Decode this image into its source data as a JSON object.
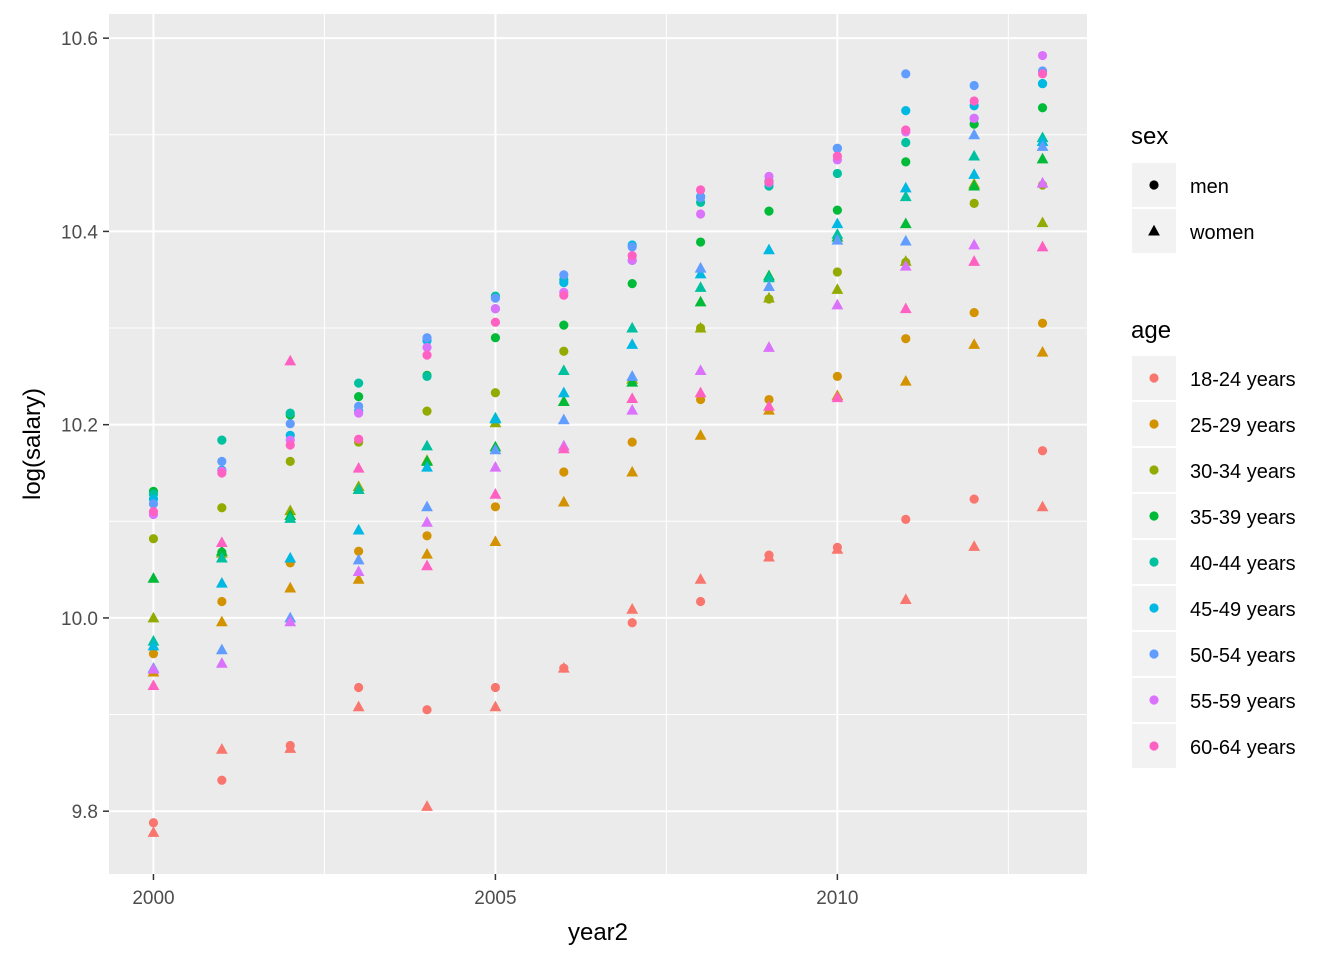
{
  "chart_data": {
    "type": "scatter",
    "xlabel": "year2",
    "ylabel": "log(salary)",
    "xlim": [
      1999.35,
      2013.65
    ],
    "ylim": [
      9.735,
      10.625
    ],
    "x_ticks": [
      2000,
      2005,
      2010
    ],
    "x_tick_labels": [
      "2000",
      "2005",
      "2010"
    ],
    "y_ticks": [
      9.8,
      10.0,
      10.2,
      10.4,
      10.6
    ],
    "y_tick_labels": [
      "9.8",
      "10.0",
      "10.2",
      "10.4",
      "10.6"
    ],
    "grid": true,
    "legend_position": "right",
    "legends": {
      "sex": {
        "title": "sex",
        "entries": [
          {
            "label": "men",
            "shape": "circle"
          },
          {
            "label": "women",
            "shape": "triangle"
          }
        ]
      },
      "age": {
        "title": "age",
        "entries": [
          {
            "label": "18-24 years",
            "color": "#F8766D"
          },
          {
            "label": "25-29 years",
            "color": "#D39200"
          },
          {
            "label": "30-34 years",
            "color": "#93AA00"
          },
          {
            "label": "35-39 years",
            "color": "#00BA38"
          },
          {
            "label": "40-44 years",
            "color": "#00C19F"
          },
          {
            "label": "45-49 years",
            "color": "#00B9E3"
          },
          {
            "label": "50-54 years",
            "color": "#619CFF"
          },
          {
            "label": "55-59 years",
            "color": "#DB72FB"
          },
          {
            "label": "60-64 years",
            "color": "#FF61C3"
          }
        ]
      }
    },
    "x": [
      2000,
      2001,
      2002,
      2003,
      2004,
      2005,
      2006,
      2007,
      2008,
      2009,
      2010,
      2011,
      2012,
      2013
    ],
    "series": [
      {
        "age": "18-24 years",
        "sex": "men",
        "values": [
          9.788,
          9.832,
          9.868,
          9.928,
          9.905,
          9.928,
          9.948,
          9.995,
          10.017,
          10.065,
          10.073,
          10.102,
          10.123,
          10.173
        ]
      },
      {
        "age": "18-24 years",
        "sex": "women",
        "values": [
          9.778,
          9.864,
          9.865,
          9.908,
          9.805,
          9.908,
          9.948,
          10.009,
          10.04,
          10.063,
          10.071,
          10.019,
          10.074,
          10.115
        ]
      },
      {
        "age": "25-29 years",
        "sex": "men",
        "values": [
          9.963,
          10.017,
          10.057,
          10.069,
          10.085,
          10.115,
          10.151,
          10.182,
          10.226,
          10.226,
          10.25,
          10.289,
          10.316,
          10.305
        ]
      },
      {
        "age": "25-29 years",
        "sex": "women",
        "values": [
          9.944,
          9.996,
          10.031,
          10.04,
          10.066,
          10.079,
          10.12,
          10.151,
          10.189,
          10.215,
          10.23,
          10.245,
          10.283,
          10.275
        ]
      },
      {
        "age": "30-34 years",
        "sex": "men",
        "values": [
          10.082,
          10.114,
          10.162,
          10.182,
          10.214,
          10.233,
          10.276,
          10.245,
          10.3,
          10.33,
          10.358,
          10.368,
          10.429,
          10.448
        ]
      },
      {
        "age": "30-34 years",
        "sex": "women",
        "values": [
          10.0,
          10.067,
          10.111,
          10.136,
          10.163,
          10.202,
          10.224,
          10.247,
          10.3,
          10.331,
          10.34,
          10.369,
          10.449,
          10.409
        ]
      },
      {
        "age": "35-39 years",
        "sex": "men",
        "values": [
          10.131,
          10.068,
          10.21,
          10.229,
          10.251,
          10.29,
          10.303,
          10.346,
          10.389,
          10.421,
          10.422,
          10.472,
          10.511,
          10.528
        ]
      },
      {
        "age": "35-39 years",
        "sex": "women",
        "values": [
          10.041,
          10.069,
          10.106,
          10.133,
          10.162,
          10.177,
          10.224,
          10.244,
          10.327,
          10.354,
          10.394,
          10.408,
          10.447,
          10.475
        ]
      },
      {
        "age": "40-44 years",
        "sex": "men",
        "values": [
          10.128,
          10.184,
          10.212,
          10.243,
          10.25,
          10.333,
          10.35,
          10.37,
          10.43,
          10.447,
          10.46,
          10.492,
          10.517,
          10.553
        ]
      },
      {
        "age": "40-44 years",
        "sex": "women",
        "values": [
          9.976,
          10.062,
          10.103,
          10.133,
          10.178,
          10.207,
          10.256,
          10.3,
          10.342,
          10.352,
          10.397,
          10.436,
          10.478,
          10.497
        ]
      },
      {
        "age": "45-49 years",
        "sex": "men",
        "values": [
          10.123,
          10.153,
          10.189,
          10.214,
          10.287,
          10.32,
          10.347,
          10.386,
          10.436,
          10.452,
          10.486,
          10.525,
          10.53,
          10.553
        ]
      },
      {
        "age": "45-49 years",
        "sex": "women",
        "values": [
          9.971,
          10.036,
          10.062,
          10.091,
          10.156,
          10.206,
          10.233,
          10.283,
          10.356,
          10.381,
          10.408,
          10.445,
          10.459,
          10.493
        ]
      },
      {
        "age": "50-54 years",
        "sex": "men",
        "values": [
          10.118,
          10.162,
          10.201,
          10.219,
          10.29,
          10.331,
          10.355,
          10.384,
          10.435,
          10.45,
          10.486,
          10.563,
          10.551,
          10.566
        ]
      },
      {
        "age": "50-54 years",
        "sex": "women",
        "values": [
          9.948,
          9.967,
          10.0,
          10.06,
          10.115,
          10.174,
          10.205,
          10.25,
          10.362,
          10.343,
          10.391,
          10.39,
          10.5,
          10.488
        ]
      },
      {
        "age": "55-59 years",
        "sex": "men",
        "values": [
          10.107,
          10.152,
          10.184,
          10.212,
          10.28,
          10.32,
          10.337,
          10.37,
          10.418,
          10.457,
          10.474,
          10.503,
          10.517,
          10.582
        ]
      },
      {
        "age": "55-59 years",
        "sex": "women",
        "values": [
          9.947,
          9.953,
          9.996,
          10.048,
          10.099,
          10.156,
          10.178,
          10.215,
          10.256,
          10.28,
          10.324,
          10.364,
          10.386,
          10.45
        ]
      },
      {
        "age": "60-64 years",
        "sex": "men",
        "values": [
          10.11,
          10.15,
          10.179,
          10.185,
          10.272,
          10.306,
          10.334,
          10.375,
          10.443,
          10.451,
          10.478,
          10.505,
          10.535,
          10.563
        ]
      },
      {
        "age": "60-64 years",
        "sex": "women",
        "values": [
          9.93,
          10.078,
          10.266,
          10.155,
          10.054,
          10.128,
          10.175,
          10.227,
          10.233,
          10.219,
          10.228,
          10.32,
          10.369,
          10.384
        ]
      }
    ]
  }
}
